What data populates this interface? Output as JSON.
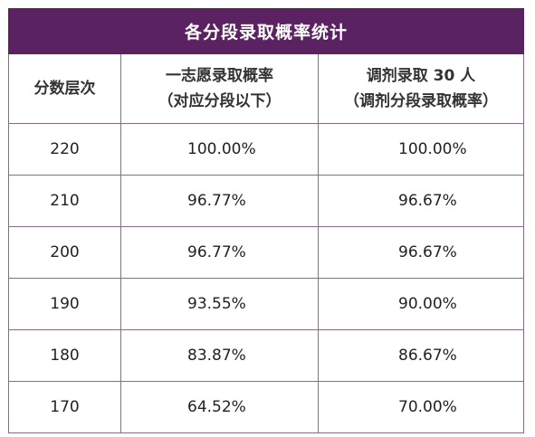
{
  "table": {
    "title": "各分段录取概率统计",
    "headers": {
      "col1": "分数层次",
      "col2_line1": "一志愿录取概率",
      "col2_line2": "（对应分段以下）",
      "col3_line1": "调剂录取 30 人",
      "col3_line2": "（调剂分段录取概率）"
    },
    "rows": [
      {
        "score": "220",
        "first_choice": "100.00%",
        "adjust": "100.00%"
      },
      {
        "score": "210",
        "first_choice": "96.77%",
        "adjust": "96.67%"
      },
      {
        "score": "200",
        "first_choice": "96.77%",
        "adjust": "96.67%"
      },
      {
        "score": "190",
        "first_choice": "93.55%",
        "adjust": "90.00%"
      },
      {
        "score": "180",
        "first_choice": "83.87%",
        "adjust": "86.67%"
      },
      {
        "score": "170",
        "first_choice": "64.52%",
        "adjust": "70.00%"
      }
    ],
    "colors": {
      "title_bg": "#5a2260",
      "title_text": "#ffffff",
      "border": "#8a6a90"
    }
  }
}
